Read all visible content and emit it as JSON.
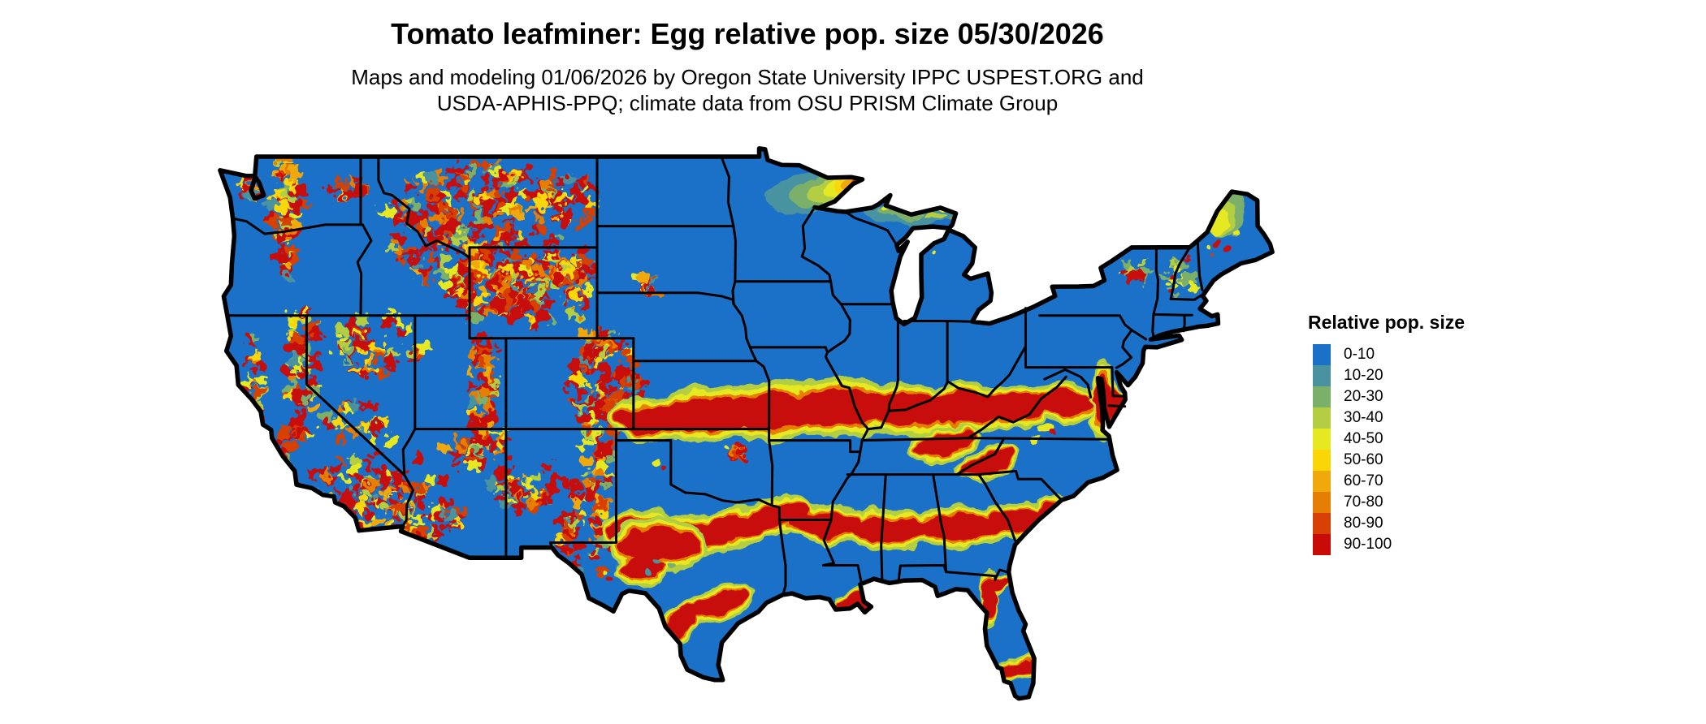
{
  "header": {
    "title": "Tomato leafminer: Egg relative pop. size 05/30/2026",
    "subtitle_line1": "Maps and modeling 01/06/2026 by Oregon State University IPPC USPEST.ORG and",
    "subtitle_line2": "USDA-APHIS-PPQ; climate data from OSU PRISM Climate Group"
  },
  "legend": {
    "title": "Relative pop. size",
    "items": [
      {
        "label": "0-10",
        "color": "#1B70C8"
      },
      {
        "label": "10-20",
        "color": "#4A92A0"
      },
      {
        "label": "20-30",
        "color": "#7BB06B"
      },
      {
        "label": "30-40",
        "color": "#B3CE43"
      },
      {
        "label": "40-50",
        "color": "#E6E922"
      },
      {
        "label": "50-60",
        "color": "#FAD607"
      },
      {
        "label": "60-70",
        "color": "#F0A90B"
      },
      {
        "label": "70-80",
        "color": "#E67E06"
      },
      {
        "label": "80-90",
        "color": "#D84005"
      },
      {
        "label": "90-100",
        "color": "#C80B07"
      }
    ]
  },
  "map": {
    "region_label": "Contiguous United States",
    "base_color": "#1B70C8",
    "border_color": "#000000",
    "background_color": "#FFFFFF",
    "high_value_regions": [
      "Cascades (Washington/Oregon)",
      "Northern Rockies (Idaho / western Montana)",
      "Yellowstone and Wyoming ranges",
      "Wasatch and Colorado Rockies",
      "Sierra Nevada and southern California mountains",
      "Arizona / New Mexico highlands",
      "Band across southern Kansas, Missouri Ozarks, Kentucky to Virginia",
      "Band across north Texas, Arkansas, Mississippi, Alabama, Georgia",
      "Central Texas and Gulf Coast strip",
      "Louisiana coast",
      "Florida big bend, west coast and Lake Okeechobee arc",
      "Chesapeake Bay / Delmarva",
      "Lake Superior shore (Minnesota arrowhead, Michigan UP)",
      "Northern Maine"
    ]
  }
}
